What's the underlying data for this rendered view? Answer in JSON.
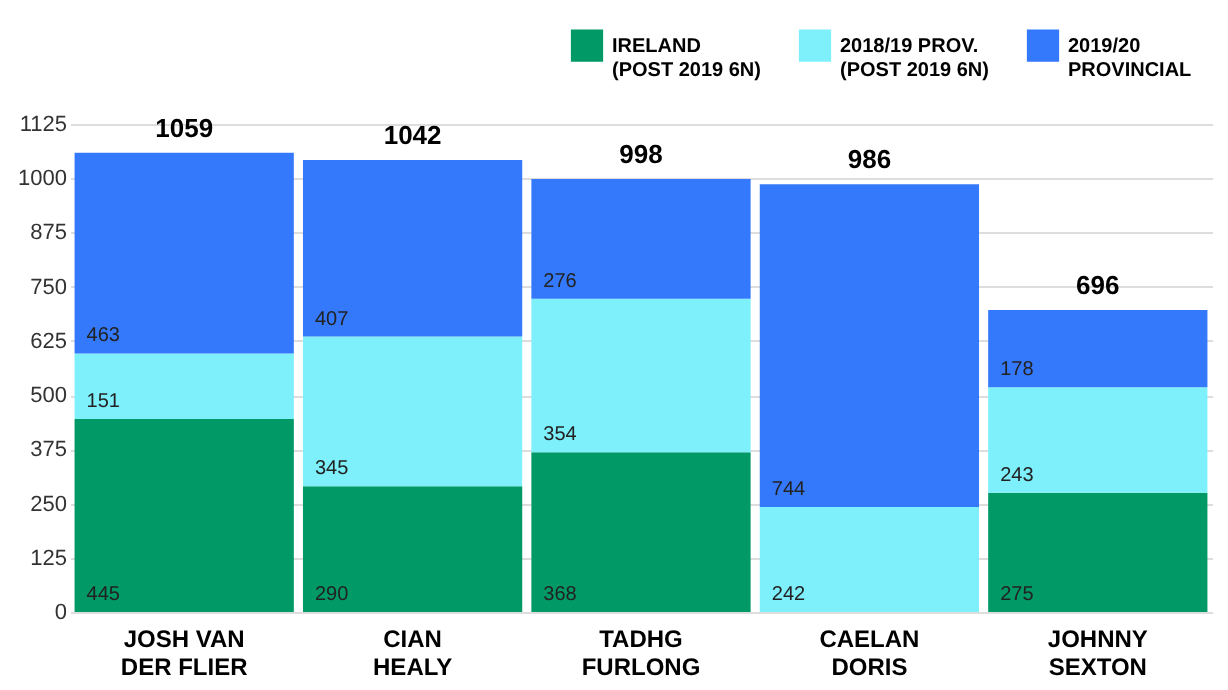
{
  "chart_data": {
    "type": "bar",
    "stacked": true,
    "categories": [
      "JOSH VAN\nDER FLIER",
      "CIAN\nHEALY",
      "TADHG\nFURLONG",
      "CAELAN\nDORIS",
      "JOHNNY\nSEXTON"
    ],
    "series": [
      {
        "name": "IRELAND\n(POST 2019 6N)",
        "color": "#019a66",
        "values": [
          445,
          290,
          368,
          null,
          275
        ]
      },
      {
        "name": "2018/19 PROV.\n(POST 2019 6N)",
        "color": "#7df0fc",
        "values": [
          151,
          345,
          354,
          242,
          243
        ]
      },
      {
        "name": "2019/20\nPROVINCIAL",
        "color": "#3479fb",
        "values": [
          463,
          407,
          276,
          744,
          178
        ]
      }
    ],
    "ylim": [
      0,
      1125
    ],
    "yticks": [
      0,
      125,
      250,
      375,
      500,
      625,
      750,
      875,
      1000,
      1125
    ],
    "grid": "y",
    "legend": "top right",
    "data_labels": true,
    "totals": [
      "1059",
      "1042",
      "998",
      "986",
      "696"
    ]
  }
}
